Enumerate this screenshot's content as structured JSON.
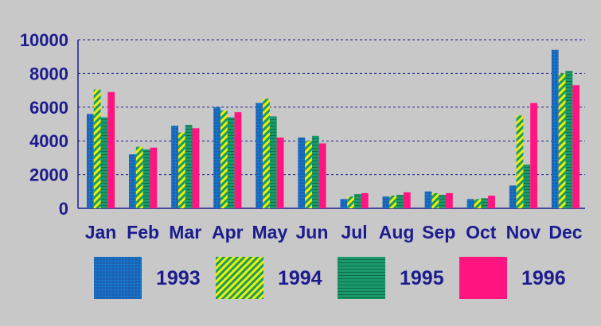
{
  "chart_data": {
    "type": "bar",
    "categories": [
      "Jan",
      "Feb",
      "Mar",
      "Apr",
      "May",
      "Jun",
      "Jul",
      "Aug",
      "Sep",
      "Oct",
      "Nov",
      "Dec"
    ],
    "series": [
      {
        "name": "1993",
        "color": "#1e5fb4",
        "pattern": "grid",
        "values": [
          5600,
          3200,
          4900,
          6000,
          6250,
          4200,
          550,
          700,
          1000,
          550,
          1350,
          9400
        ]
      },
      {
        "name": "1994",
        "color": "#f0f000",
        "pattern": "diagonal-stripes",
        "values": [
          7050,
          3650,
          4500,
          5800,
          6500,
          4000,
          700,
          750,
          900,
          550,
          5500,
          8000
        ]
      },
      {
        "name": "1995",
        "color": "#1a9a6a",
        "pattern": "horizontal-stripes",
        "values": [
          5400,
          3500,
          4950,
          5400,
          5450,
          4300,
          850,
          800,
          800,
          600,
          2600,
          8150
        ]
      },
      {
        "name": "1996",
        "color": "#ff1480",
        "pattern": "solid",
        "values": [
          6900,
          3600,
          4750,
          5700,
          4200,
          3850,
          900,
          950,
          900,
          750,
          6250,
          7300
        ]
      }
    ],
    "yticks": [
      "0",
      "2000",
      "4000",
      "6000",
      "8000",
      "10000"
    ],
    "ylim": [
      0,
      10000
    ],
    "grid": true,
    "grid_style": "dashed horizontal",
    "legend_position": "bottom",
    "background_color": "#c8c8c8",
    "text_color": "#1c1c8e"
  }
}
